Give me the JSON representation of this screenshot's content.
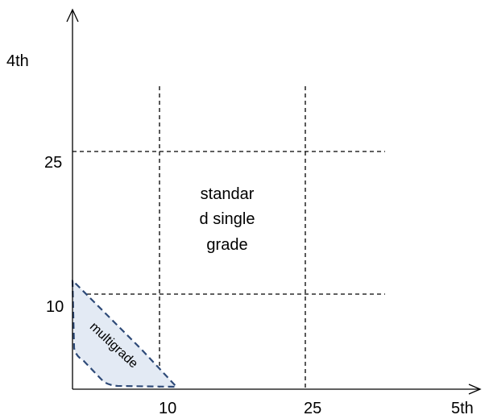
{
  "axes": {
    "y_label": "4th",
    "x_label": "5th"
  },
  "ticks": {
    "x_10": "10",
    "x_25": "25",
    "y_10": "10",
    "y_25": "25"
  },
  "regions": {
    "single_grade_line1": "standar",
    "single_grade_line2": "d single",
    "single_grade_line3": "grade",
    "multigrade": "multigrade"
  },
  "colors": {
    "axis": "#000000",
    "gridline": "#000000",
    "multigrade_fill": "#e3eaf4",
    "multigrade_border": "#2e4a78"
  }
}
